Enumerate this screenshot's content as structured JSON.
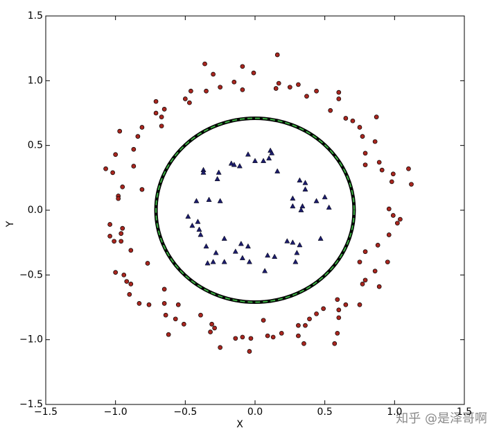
{
  "chart_data": {
    "type": "scatter",
    "xlabel": "X",
    "ylabel": "Y",
    "xlim": [
      -1.5,
      1.5
    ],
    "ylim": [
      -1.5,
      1.5
    ],
    "xticks": [
      {
        "value": -1.5,
        "label": "−1.5"
      },
      {
        "value": -1.0,
        "label": "−1.0"
      },
      {
        "value": -0.5,
        "label": "−0.5"
      },
      {
        "value": 0,
        "label": "0.0"
      },
      {
        "value": 0.5,
        "label": "0.5"
      },
      {
        "value": 1.0,
        "label": "1.0"
      },
      {
        "value": 1.5,
        "label": "1.5"
      }
    ],
    "yticks": [
      {
        "value": -1.5,
        "label": "−1.5"
      },
      {
        "value": -1.0,
        "label": "−1.0"
      },
      {
        "value": -0.5,
        "label": "−0.5"
      },
      {
        "value": 0,
        "label": "0.0"
      },
      {
        "value": 0.5,
        "label": "0.5"
      },
      {
        "value": 1.0,
        "label": "1.0"
      },
      {
        "value": 1.5,
        "label": "1.5"
      }
    ],
    "grid": false,
    "series": [
      {
        "color": "#a8261f",
        "marker": "circle",
        "x": [
          0.16,
          -0.36,
          -0.09,
          -0.3,
          -0.01,
          0.17,
          0.31,
          -0.15,
          -0.25,
          -0.35,
          -0.46,
          -0.09,
          0.15,
          0.25,
          0.44,
          0.6,
          0.37,
          -0.5,
          -0.47,
          -0.71,
          -0.65,
          0.6,
          0.54,
          -0.71,
          0.87,
          0.65,
          -0.67,
          0.7,
          -0.67,
          0.75,
          -0.81,
          -0.97,
          0.77,
          -0.84,
          0.86,
          -0.87,
          0.79,
          -1.0,
          0.89,
          0.79,
          -0.87,
          -1.07,
          -1.02,
          1.1,
          0.91,
          0.99,
          0.98,
          -0.95,
          1.12,
          -0.81,
          -0.98,
          -0.98,
          0.96,
          0.99,
          1.04,
          1.02,
          -1.04,
          -0.95,
          -0.96,
          -1.04,
          -1.01,
          -0.96,
          0.96,
          0.79,
          0.88,
          -0.89,
          0.75,
          -0.77,
          0.95,
          -1.0,
          -0.94,
          0.86,
          -0.92,
          -0.89,
          0.79,
          0.89,
          -0.65,
          0.77,
          -0.9,
          -0.83,
          -0.76,
          -0.65,
          -0.55,
          0.75,
          0.59,
          0.65,
          0.49,
          0.6,
          -0.64,
          -0.39,
          0.44,
          0.39,
          0.6,
          -0.57,
          -0.51,
          -0.31,
          -0.29,
          0.06,
          0.31,
          0.36,
          -0.32,
          -0.62,
          0.19,
          0.31,
          -0.14,
          -0.09,
          -0.03,
          0.09,
          0.13,
          -0.25,
          -0.04,
          0.35,
          0.59,
          0.57
        ],
        "y": [
          1.2,
          1.13,
          1.11,
          1.05,
          1.06,
          0.98,
          0.97,
          0.99,
          0.95,
          0.92,
          0.92,
          0.93,
          0.94,
          0.95,
          0.92,
          0.91,
          0.88,
          0.86,
          0.83,
          0.84,
          0.78,
          0.86,
          0.77,
          0.75,
          0.72,
          0.71,
          0.72,
          0.69,
          0.65,
          0.64,
          0.64,
          0.61,
          0.57,
          0.57,
          0.53,
          0.47,
          0.44,
          0.43,
          0.37,
          0.35,
          0.34,
          0.32,
          0.29,
          0.32,
          0.31,
          0.28,
          0.22,
          0.18,
          0.2,
          0.16,
          0.11,
          0.09,
          0.01,
          -0.04,
          -0.07,
          -0.1,
          -0.11,
          -0.14,
          -0.18,
          -0.2,
          -0.24,
          -0.24,
          -0.19,
          -0.32,
          -0.27,
          -0.31,
          -0.4,
          -0.41,
          -0.4,
          -0.48,
          -0.5,
          -0.47,
          -0.55,
          -0.57,
          -0.54,
          -0.59,
          -0.61,
          -0.57,
          -0.65,
          -0.72,
          -0.73,
          -0.72,
          -0.73,
          -0.73,
          -0.69,
          -0.73,
          -0.76,
          -0.77,
          -0.81,
          -0.81,
          -0.8,
          -0.84,
          -0.83,
          -0.84,
          -0.88,
          -0.88,
          -0.91,
          -0.85,
          -0.89,
          -0.89,
          -0.94,
          -0.96,
          -0.95,
          -0.97,
          -0.99,
          -0.98,
          -0.99,
          -0.97,
          -0.98,
          -1.06,
          -1.09,
          -1.03,
          -0.95,
          -1.03
        ]
      },
      {
        "color": "#1c1c6b",
        "marker": "triangle",
        "x": [
          -0.05,
          0.11,
          0.12,
          0.1,
          0.0,
          0.06,
          -0.17,
          -0.15,
          -0.11,
          0.16,
          -0.37,
          -0.37,
          -0.26,
          -0.27,
          0.32,
          0.36,
          0.36,
          0.27,
          0.5,
          0.44,
          -0.33,
          -0.25,
          -0.42,
          0.27,
          0.34,
          0.53,
          0.33,
          -0.48,
          -0.41,
          -0.45,
          -0.4,
          -0.39,
          0.47,
          -0.22,
          0.23,
          0.27,
          0.32,
          -0.35,
          -0.1,
          -0.05,
          -0.14,
          -0.28,
          0.3,
          0.09,
          0.14,
          -0.09,
          0.29,
          -0.34,
          -0.3,
          -0.22,
          -0.04,
          0.07
        ],
        "y": [
          0.43,
          0.46,
          0.44,
          0.4,
          0.38,
          0.38,
          0.36,
          0.35,
          0.34,
          0.3,
          0.31,
          0.29,
          0.29,
          0.24,
          0.23,
          0.21,
          0.16,
          0.09,
          0.1,
          0.07,
          0.08,
          0.07,
          0.07,
          0.03,
          0.03,
          0.02,
          0.0,
          -0.05,
          -0.09,
          -0.12,
          -0.15,
          -0.19,
          -0.22,
          -0.22,
          -0.24,
          -0.25,
          -0.27,
          -0.28,
          -0.26,
          -0.28,
          -0.32,
          -0.33,
          -0.33,
          -0.35,
          -0.36,
          -0.37,
          -0.4,
          -0.41,
          -0.4,
          -0.4,
          -0.4,
          -0.47
        ]
      }
    ],
    "boundary": {
      "cx": 0,
      "cy": 0,
      "r": 0.71,
      "color": "#3cb043"
    }
  },
  "watermark": "知乎 @是泽哥啊"
}
